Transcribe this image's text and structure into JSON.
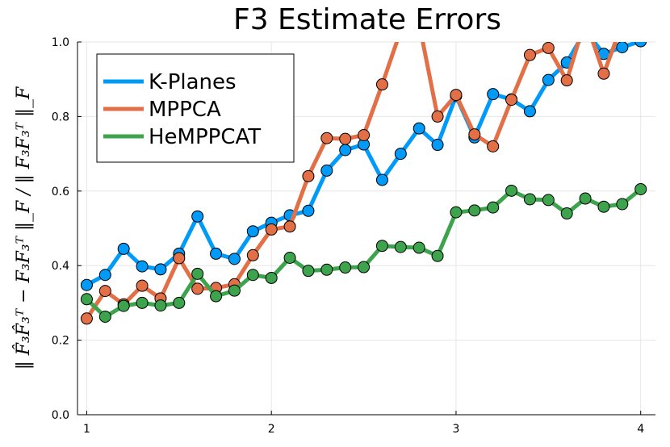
{
  "chart_data": {
    "type": "line",
    "title": "F3 Estimate Errors",
    "xlabel": "",
    "ylabel": "‖ F̂₃F̂₃ᵀ − F₃F₃ᵀ ‖_F / ‖ F₃F₃ᵀ ‖_F",
    "xlim": [
      0.95,
      4.08
    ],
    "ylim": [
      0.0,
      1.0
    ],
    "xticks": [
      1,
      2,
      3,
      4
    ],
    "xtick_labels": [
      "1",
      "2",
      "3",
      "4"
    ],
    "yticks": [
      0.0,
      0.2,
      0.4,
      0.6,
      0.8,
      1.0
    ],
    "ytick_labels": [
      "0.0",
      "0.2",
      "0.4",
      "0.6",
      "0.8",
      "1.0"
    ],
    "grid": true,
    "legend_position": "top-left",
    "x": [
      1.0,
      1.1,
      1.2,
      1.3,
      1.4,
      1.5,
      1.6,
      1.7,
      1.8,
      1.9,
      2.0,
      2.1,
      2.2,
      2.3,
      2.4,
      2.5,
      2.6,
      2.7,
      2.8,
      2.9,
      3.0,
      3.1,
      3.2,
      3.3,
      3.4,
      3.5,
      3.6,
      3.7,
      3.8,
      3.9,
      4.0
    ],
    "series": [
      {
        "name": "K-Planes",
        "color": "#009af9",
        "values": [
          0.348,
          0.375,
          0.445,
          0.398,
          0.39,
          0.432,
          0.532,
          0.432,
          0.418,
          0.492,
          0.515,
          0.535,
          0.547,
          0.655,
          0.71,
          0.725,
          0.63,
          0.7,
          0.768,
          0.724,
          0.855,
          0.744,
          0.86,
          0.846,
          0.814,
          0.898,
          0.945,
          1.03,
          0.968,
          0.986,
          1.002
        ]
      },
      {
        "name": "MPPCA",
        "color": "#e26f46",
        "values": [
          0.258,
          0.332,
          0.296,
          0.346,
          0.312,
          0.42,
          0.338,
          0.34,
          0.35,
          0.428,
          0.497,
          0.505,
          0.64,
          0.742,
          0.74,
          0.75,
          0.886,
          1.03,
          1.05,
          0.8,
          0.858,
          0.752,
          0.72,
          0.845,
          0.965,
          0.984,
          0.897,
          1.06,
          0.915,
          1.05,
          1.05
        ]
      },
      {
        "name": "HeMPPCAT",
        "color": "#3da44d",
        "values": [
          0.31,
          0.263,
          0.292,
          0.3,
          0.293,
          0.3,
          0.378,
          0.318,
          0.333,
          0.375,
          0.367,
          0.421,
          0.386,
          0.389,
          0.395,
          0.396,
          0.453,
          0.45,
          0.448,
          0.426,
          0.543,
          0.548,
          0.556,
          0.601,
          0.578,
          0.576,
          0.54,
          0.58,
          0.558,
          0.565,
          0.605
        ]
      }
    ]
  }
}
